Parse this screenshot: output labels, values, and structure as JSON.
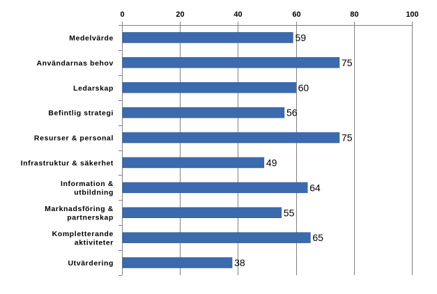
{
  "chart_data": {
    "type": "bar",
    "orientation": "horizontal",
    "categories": [
      "Medelvärde",
      "Användarnas behov",
      "Ledarskap",
      "Befintlig strategi",
      "Resurser & personal",
      "Infrastruktur & säkerhet",
      "Information & utbildning",
      "Marknadsföring & partnerskap",
      "Kompletterande aktiviteter",
      "Utvärdering"
    ],
    "category_lines": [
      [
        "Medelvärde"
      ],
      [
        "Användarnas behov"
      ],
      [
        "Ledarskap"
      ],
      [
        "Befintlig strategi"
      ],
      [
        "Resurser & personal"
      ],
      [
        "Infrastruktur & säkerhet"
      ],
      [
        "Information &",
        "utbildning"
      ],
      [
        "Marknadsföring &",
        "partnerskap"
      ],
      [
        "Kompletterande",
        "aktiviteter"
      ],
      [
        "Utvärdering"
      ]
    ],
    "values": [
      59,
      75,
      60,
      56,
      75,
      49,
      64,
      55,
      65,
      38
    ],
    "xlim": [
      0,
      100
    ],
    "xticks": [
      0,
      20,
      40,
      60,
      80,
      100
    ],
    "x_axis_position": "top",
    "grid": true,
    "legend": "none",
    "title": "",
    "xlabel": "",
    "ylabel": "",
    "colors": {
      "bar": "#3B6AAD",
      "bar_edge": "#2E5793",
      "grid": "#808080",
      "axis": "#808080"
    }
  }
}
